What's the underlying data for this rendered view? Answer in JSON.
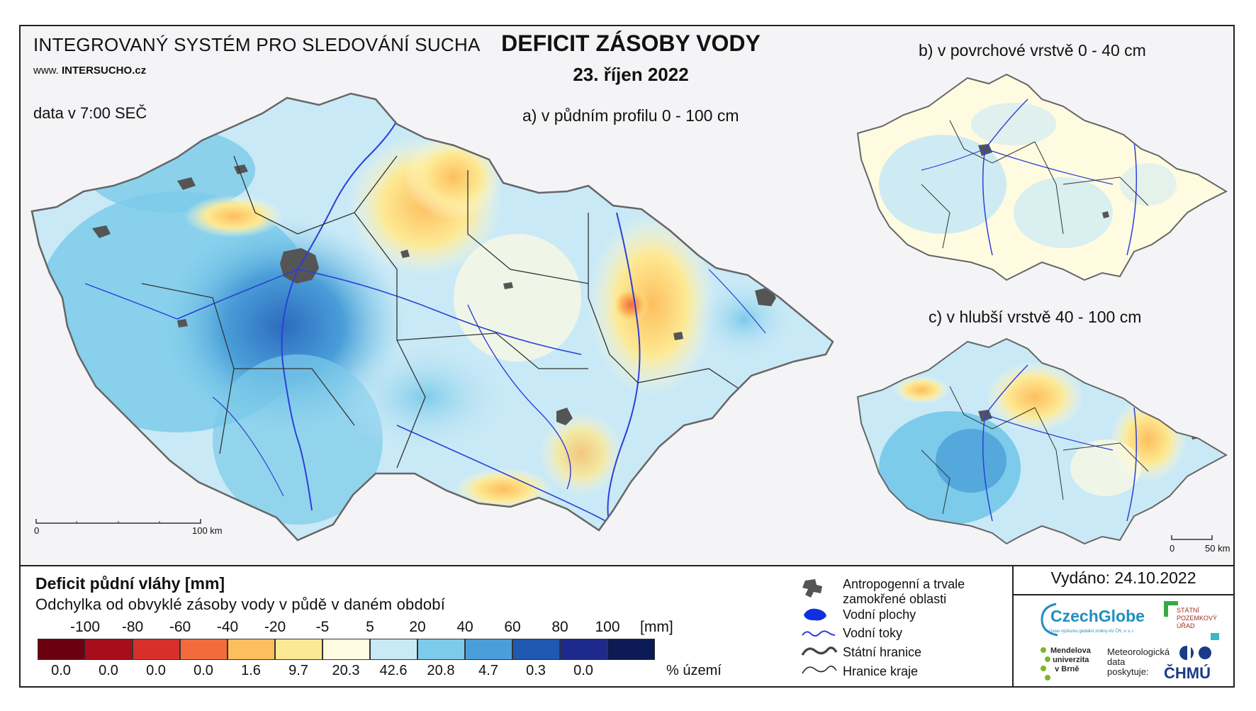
{
  "header": {
    "system_title": "INTEGROVANÝ SYSTÉM PRO SLEDOVÁNÍ SUCHA",
    "website_prefix": "www. ",
    "website_main": "INTERSUCHO",
    "website_suffix": ".cz",
    "data_time": "data v 7:00 SEČ",
    "title": "DEFICIT ZÁSOBY VODY",
    "date": "23. říjen 2022"
  },
  "maps": {
    "a": {
      "label": "a) v půdním profilu 0 - 100 cm",
      "scale_zero": "0",
      "scale_end": "100 km"
    },
    "b": {
      "label": "b) v povrchové vrstvě 0 - 40 cm"
    },
    "c": {
      "label": "c) v hlubší vrstvě 40 - 100 cm",
      "scale_zero": "0",
      "scale_end": "50 km"
    }
  },
  "legend": {
    "title": "Deficit půdní vláhy  [mm]",
    "subtitle": "Odchylka od obvyklé zásoby vody v půdě v daném období",
    "unit_mm": "[mm]",
    "unit_percent": "% území",
    "thresholds": [
      "-100",
      "-80",
      "-60",
      "-40",
      "-20",
      "-5",
      "5",
      "20",
      "40",
      "60",
      "80",
      "100"
    ],
    "classes": [
      {
        "color": "#6b0010",
        "percent": "0.0"
      },
      {
        "color": "#a80d1c",
        "percent": "0.0"
      },
      {
        "color": "#d7302c",
        "percent": "0.0"
      },
      {
        "color": "#f26b3c",
        "percent": "0.0"
      },
      {
        "color": "#fdbf5e",
        "percent": "1.6"
      },
      {
        "color": "#fde993",
        "percent": "9.7"
      },
      {
        "color": "#fffbe1",
        "percent": "20.3"
      },
      {
        "color": "#c9e9f6",
        "percent": "42.6"
      },
      {
        "color": "#7ccbea",
        "percent": "20.8"
      },
      {
        "color": "#4a9fd8",
        "percent": "4.7"
      },
      {
        "color": "#1f58b0",
        "percent": "0.3"
      },
      {
        "color": "#1d2a8c",
        "percent": "0.0"
      },
      {
        "color": "#0c1a55",
        "percent": ""
      }
    ],
    "symbols": [
      {
        "icon": "urban-area-icon",
        "label_line1": "Antropogenní a trvale",
        "label_line2": "zamokřené oblasti"
      },
      {
        "icon": "water-body-icon",
        "label_line1": "Vodní plochy"
      },
      {
        "icon": "river-icon",
        "label_line1": "Vodní toky"
      },
      {
        "icon": "state-border-icon",
        "label_line1": "Státní hranice"
      },
      {
        "icon": "region-border-icon",
        "label_line1": "Hranice kraje"
      }
    ]
  },
  "footer": {
    "issued": "Vydáno: 24.10.2022",
    "logos": {
      "czechglobe": "CzechGlobe",
      "czechglobe_sub": "Ústav výzkumu globální změny AV ČR, v. v. i.",
      "spu_line1": "STÁTNÍ",
      "spu_line2": "POZEMKOVÝ",
      "spu_line3": "ÚŘAD",
      "mendelu_line1": "Mendelova",
      "mendelu_line2": "univerzita",
      "mendelu_line3": "v Brně",
      "met_line1": "Meteorologická",
      "met_line2": "data",
      "met_line3": "poskytuje:",
      "chmu": "ČHMÚ"
    }
  }
}
